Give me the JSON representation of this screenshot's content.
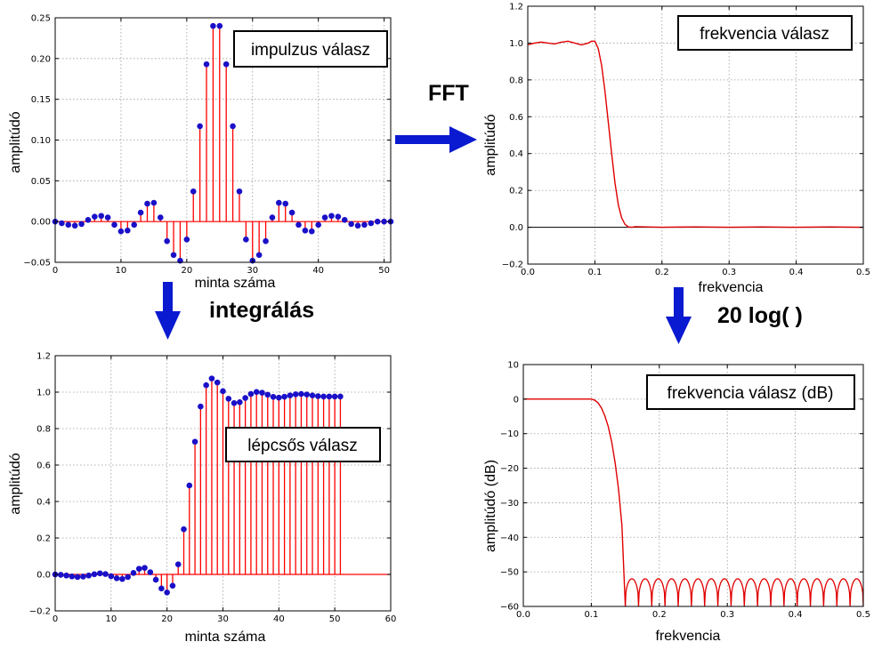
{
  "annotations": {
    "fft": "FFT",
    "integral": "integrálás",
    "log": "20 log(  )"
  },
  "colors": {
    "stem": "#ff0000",
    "marker": "#1a10c8",
    "line": "#e00000",
    "arrow": "#0a1ad0",
    "zero_line": "#000000"
  },
  "chart_data": [
    {
      "id": "impulse",
      "type": "stem",
      "legend_box": "impulzus válasz",
      "xlabel": "minta száma",
      "ylabel": "amplitúdó",
      "xlim": [
        0,
        51
      ],
      "ylim": [
        -0.05,
        0.25
      ],
      "xticks": [
        0,
        10,
        20,
        30,
        40,
        50
      ],
      "yticks": [
        -0.05,
        0.0,
        0.05,
        0.1,
        0.15,
        0.2,
        0.25
      ],
      "ytick_labels": [
        "−0.05",
        "0.00",
        "0.05",
        "0.10",
        "0.15",
        "0.20",
        "0.25"
      ],
      "grid": true,
      "x": [
        0,
        1,
        2,
        3,
        4,
        5,
        6,
        7,
        8,
        9,
        10,
        11,
        12,
        13,
        14,
        15,
        16,
        17,
        18,
        19,
        20,
        21,
        22,
        23,
        24,
        25,
        26,
        27,
        28,
        29,
        30,
        31,
        32,
        33,
        34,
        35,
        36,
        37,
        38,
        39,
        40,
        41,
        42,
        43,
        44,
        45,
        46,
        47,
        48,
        49,
        50,
        51
      ],
      "values": [
        0.0,
        -0.002,
        -0.004,
        -0.005,
        -0.003,
        0.002,
        0.006,
        0.007,
        0.005,
        -0.004,
        -0.012,
        -0.011,
        -0.004,
        0.011,
        0.022,
        0.023,
        0.005,
        -0.024,
        -0.041,
        -0.048,
        -0.022,
        0.037,
        0.117,
        0.193,
        0.24,
        0.24,
        0.193,
        0.117,
        0.037,
        -0.022,
        -0.048,
        -0.041,
        -0.024,
        0.005,
        0.023,
        0.022,
        0.011,
        -0.004,
        -0.011,
        -0.012,
        -0.004,
        0.005,
        0.007,
        0.006,
        0.002,
        -0.003,
        -0.005,
        -0.004,
        -0.002,
        0.0,
        0.0,
        0.0
      ]
    },
    {
      "id": "freq",
      "type": "line",
      "legend_box": "frekvencia válasz",
      "xlabel": "frekvencia",
      "ylabel": "amplitúdó",
      "xlim": [
        0,
        0.5
      ],
      "ylim": [
        -0.2,
        1.2
      ],
      "xticks": [
        0.0,
        0.1,
        0.2,
        0.3,
        0.4,
        0.5
      ],
      "xtick_labels": [
        "0.0",
        "0.1",
        "0.2",
        "0.3",
        "0.4",
        "0.5"
      ],
      "yticks": [
        -0.2,
        0.0,
        0.2,
        0.4,
        0.6,
        0.8,
        1.0,
        1.2
      ],
      "ytick_labels": [
        "−0.2",
        "0.0",
        "0.2",
        "0.4",
        "0.6",
        "0.8",
        "1.0",
        "1.2"
      ],
      "grid": true,
      "x": [
        0.0,
        0.01,
        0.02,
        0.03,
        0.04,
        0.05,
        0.06,
        0.07,
        0.08,
        0.09,
        0.095,
        0.1,
        0.105,
        0.11,
        0.115,
        0.12,
        0.125,
        0.13,
        0.135,
        0.14,
        0.145,
        0.15,
        0.155,
        0.16,
        0.2,
        0.25,
        0.3,
        0.35,
        0.4,
        0.45,
        0.5
      ],
      "values": [
        0.99,
        1.0,
        1.005,
        1.0,
        0.995,
        1.005,
        1.01,
        1.0,
        0.99,
        1.0,
        1.01,
        1.01,
        0.97,
        0.88,
        0.74,
        0.57,
        0.4,
        0.24,
        0.12,
        0.05,
        0.015,
        0.002,
        0.0,
        0.003,
        0.0,
        0.002,
        0.0,
        0.002,
        0.0,
        0.002,
        0.0
      ]
    },
    {
      "id": "step",
      "type": "stem",
      "legend_box": "lépcsős válasz",
      "xlabel": "minta száma",
      "ylabel": "amplitúdó",
      "xlim": [
        0,
        60
      ],
      "ylim": [
        -0.2,
        1.2
      ],
      "xticks": [
        0,
        10,
        20,
        30,
        40,
        50,
        60
      ],
      "yticks": [
        -0.2,
        0.0,
        0.2,
        0.4,
        0.6,
        0.8,
        1.0,
        1.2
      ],
      "ytick_labels": [
        "−0.2",
        "0.0",
        "0.2",
        "0.4",
        "0.6",
        "0.8",
        "1.0",
        "1.2"
      ],
      "grid": true,
      "x": [
        0,
        1,
        2,
        3,
        4,
        5,
        6,
        7,
        8,
        9,
        10,
        11,
        12,
        13,
        14,
        15,
        16,
        17,
        18,
        19,
        20,
        21,
        22,
        23,
        24,
        25,
        26,
        27,
        28,
        29,
        30,
        31,
        32,
        33,
        34,
        35,
        36,
        37,
        38,
        39,
        40,
        41,
        42,
        43,
        44,
        45,
        46,
        47,
        48,
        49,
        50,
        51
      ],
      "values": [
        0.0,
        -0.002,
        -0.006,
        -0.011,
        -0.014,
        -0.012,
        -0.006,
        0.001,
        0.006,
        0.002,
        -0.01,
        -0.021,
        -0.025,
        -0.014,
        0.008,
        0.031,
        0.036,
        0.012,
        -0.029,
        -0.077,
        -0.099,
        -0.062,
        0.055,
        0.248,
        0.488,
        0.728,
        0.921,
        1.038,
        1.075,
        1.053,
        1.005,
        0.964,
        0.94,
        0.945,
        0.968,
        0.99,
        1.001,
        0.997,
        0.986,
        0.974,
        0.97,
        0.975,
        0.982,
        0.988,
        0.99,
        0.987,
        0.982,
        0.978,
        0.976,
        0.976,
        0.976,
        0.976
      ]
    },
    {
      "id": "freq_db",
      "type": "line",
      "legend_box": "frekvencia válasz (dB)",
      "xlabel": "frekvencia",
      "ylabel": "amplitúdó (dB)",
      "xlim": [
        0,
        0.5
      ],
      "ylim": [
        -60,
        10
      ],
      "xticks": [
        0.0,
        0.1,
        0.2,
        0.3,
        0.4,
        0.5
      ],
      "xtick_labels": [
        "0.0",
        "0.1",
        "0.2",
        "0.3",
        "0.4",
        "0.5"
      ],
      "yticks": [
        -60,
        -50,
        -40,
        -30,
        -20,
        -10,
        0,
        10
      ],
      "ytick_labels": [
        "−60",
        "−50",
        "−40",
        "−30",
        "−20",
        "−10",
        "0",
        "10"
      ],
      "grid": true,
      "passband_x": [
        0.0,
        0.02,
        0.04,
        0.06,
        0.08,
        0.1,
        0.105,
        0.11,
        0.115,
        0.12,
        0.125,
        0.13,
        0.135,
        0.14,
        0.145,
        0.15
      ],
      "passband_values": [
        0.0,
        0.0,
        0.0,
        0.0,
        0.0,
        0.0,
        -0.3,
        -1.1,
        -2.6,
        -4.9,
        -8.0,
        -12.4,
        -18.4,
        -26.0,
        -36.5,
        -60.0
      ],
      "stopband_start": 0.15,
      "stopband_end": 0.5,
      "stopband_lobes": 18,
      "stopband_peak_db": -52,
      "stopband_floor_db": -60
    }
  ]
}
